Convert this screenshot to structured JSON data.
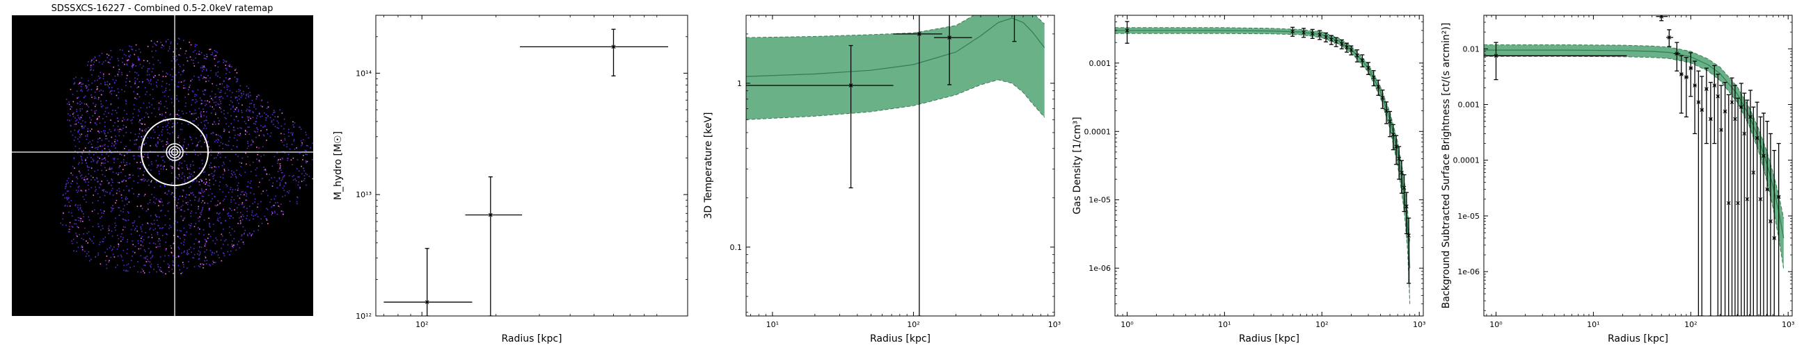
{
  "image_panel": {
    "title": "SDSSXCS-16227 - Combined 0.5-2.0keV ratemap"
  },
  "chart_data": [
    {
      "type": "scatter",
      "name": "mass",
      "xlabel": "Radius [kpc]",
      "ylabel": "M_hydro [M☉]",
      "xscale": "log",
      "yscale": "log",
      "xlim": [
        65,
        1200
      ],
      "ylim": [
        1000000000000.0,
        300000000000000.0
      ],
      "xticks": [
        {
          "v": 100,
          "label": "10²"
        }
      ],
      "yticks": [
        {
          "v": 1000000000000.0,
          "label": "10¹²"
        },
        {
          "v": 10000000000000.0,
          "label": "10¹³"
        },
        {
          "v": 100000000000000.0,
          "label": "10¹⁴"
        }
      ],
      "points": [
        {
          "x": 105,
          "y": 1300000000000.0,
          "xlo": 70,
          "xhi": 160,
          "ylo": 1000000000000.0,
          "yhi": 3600000000000.0
        },
        {
          "x": 190,
          "y": 6800000000000.0,
          "xlo": 150,
          "xhi": 255,
          "ylo": 1000000000000.0,
          "yhi": 14000000000000.0
        },
        {
          "x": 600,
          "y": 165000000000000.0,
          "xlo": 250,
          "xhi": 1000,
          "ylo": 95000000000000.0,
          "yhi": 230000000000000.0
        }
      ]
    },
    {
      "type": "line",
      "name": "temperature",
      "xlabel": "Radius [kpc]",
      "ylabel": "3D Temperature [keV]",
      "xscale": "log",
      "yscale": "log",
      "xlim": [
        6.5,
        1000
      ],
      "ylim": [
        0.038,
        2.6
      ],
      "xticks": [
        {
          "v": 10,
          "label": "10¹"
        },
        {
          "v": 100,
          "label": "10²"
        },
        {
          "v": 1000,
          "label": "10³"
        }
      ],
      "yticks": [
        {
          "v": 0.1,
          "label": "0.1"
        },
        {
          "v": 1,
          "label": "1"
        }
      ],
      "band": {
        "x": [
          6.5,
          20,
          50,
          100,
          200,
          300,
          400,
          500,
          600,
          700,
          850
        ],
        "lo": [
          0.6,
          0.63,
          0.67,
          0.73,
          0.85,
          0.98,
          1.05,
          1.0,
          0.88,
          0.75,
          0.62
        ],
        "mid": [
          1.1,
          1.14,
          1.2,
          1.3,
          1.55,
          1.95,
          2.35,
          2.5,
          2.35,
          2.05,
          1.65
        ],
        "hi": [
          1.9,
          1.93,
          1.98,
          2.03,
          2.25,
          2.75,
          3.1,
          3.25,
          3.0,
          2.7,
          2.3
        ]
      },
      "points": [
        {
          "x": 36,
          "y": 0.97,
          "xlo": 6.5,
          "xhi": 72,
          "ylo": 0.23,
          "yhi": 1.7
        },
        {
          "x": 110,
          "y": 2.0,
          "xlo": 72,
          "xhi": 160,
          "ylo": 0.017,
          "yhi": 4.4
        },
        {
          "x": 180,
          "y": 1.9,
          "xlo": 140,
          "xhi": 260,
          "ylo": 0.98,
          "yhi": 2.8
        },
        {
          "x": 520,
          "y": 3.8,
          "xlo": 270,
          "xhi": 820,
          "ylo": 1.8,
          "yhi": 5.5
        }
      ]
    },
    {
      "type": "line",
      "name": "density",
      "xlabel": "Radius [kpc]",
      "ylabel": "Gas Density [1/cm³]",
      "xscale": "log",
      "yscale": "log",
      "xlim": [
        0.75,
        1100
      ],
      "ylim": [
        2e-07,
        0.005
      ],
      "xticks": [
        {
          "v": 1,
          "label": "10⁰"
        },
        {
          "v": 10,
          "label": "10¹"
        },
        {
          "v": 100,
          "label": "10²"
        },
        {
          "v": 1000,
          "label": "10³"
        }
      ],
      "yticks": [
        {
          "v": 1e-06,
          "label": "1e-06"
        },
        {
          "v": 1e-05,
          "label": "1e-05"
        },
        {
          "v": 0.0001,
          "label": "0.0001"
        },
        {
          "v": 0.001,
          "label": "0.001"
        }
      ],
      "model": {
        "x": [
          0.75,
          2,
          5,
          10,
          30,
          60,
          100,
          150,
          200,
          300,
          400,
          500,
          600,
          700,
          760,
          800
        ],
        "mid": [
          0.003,
          0.003,
          0.003,
          0.00299,
          0.00295,
          0.00285,
          0.0026,
          0.0021,
          0.0016,
          0.00085,
          0.00038,
          0.00015,
          5e-05,
          1.3e-05,
          4e-06,
          1e-06
        ],
        "lo": [
          0.0027,
          0.0027,
          0.0027,
          0.0027,
          0.00268,
          0.0026,
          0.00235,
          0.0019,
          0.00142,
          0.00074,
          0.00031,
          0.00011,
          3.2e-05,
          7e-06,
          1.8e-06,
          3e-07
        ],
        "hi": [
          0.0033,
          0.0033,
          0.0033,
          0.0033,
          0.00322,
          0.0031,
          0.00285,
          0.0023,
          0.00178,
          0.00096,
          0.00045,
          0.00019,
          7e-05,
          2e-05,
          7e-06,
          2.4e-06
        ]
      },
      "points": [
        {
          "x": 1,
          "y": 0.003,
          "yerr_frac": 0.35
        },
        {
          "x": 50,
          "y": 0.0029,
          "yerr_frac": 0.15
        },
        {
          "x": 65,
          "y": 0.0028,
          "yerr_frac": 0.15
        },
        {
          "x": 80,
          "y": 0.0027,
          "yerr_frac": 0.15
        },
        {
          "x": 95,
          "y": 0.0026,
          "yerr_frac": 0.15
        },
        {
          "x": 110,
          "y": 0.0024,
          "yerr_frac": 0.15
        },
        {
          "x": 125,
          "y": 0.0022,
          "yerr_frac": 0.15
        },
        {
          "x": 140,
          "y": 0.00205,
          "yerr_frac": 0.15
        },
        {
          "x": 160,
          "y": 0.0019,
          "yerr_frac": 0.15
        },
        {
          "x": 180,
          "y": 0.0017,
          "yerr_frac": 0.15
        },
        {
          "x": 200,
          "y": 0.00155,
          "yerr_frac": 0.15
        },
        {
          "x": 230,
          "y": 0.0013,
          "yerr_frac": 0.2
        },
        {
          "x": 260,
          "y": 0.0011,
          "yerr_frac": 0.2
        },
        {
          "x": 300,
          "y": 0.00085,
          "yerr_frac": 0.2
        },
        {
          "x": 340,
          "y": 0.00062,
          "yerr_frac": 0.25
        },
        {
          "x": 380,
          "y": 0.00045,
          "yerr_frac": 0.25
        },
        {
          "x": 420,
          "y": 0.00031,
          "yerr_frac": 0.3
        },
        {
          "x": 460,
          "y": 0.0002,
          "yerr_frac": 0.35
        },
        {
          "x": 500,
          "y": 0.00014,
          "yerr_frac": 0.4
        },
        {
          "x": 540,
          "y": 9e-05,
          "yerr_frac": 0.4
        },
        {
          "x": 580,
          "y": 6e-05,
          "yerr_frac": 0.45
        },
        {
          "x": 620,
          "y": 4e-05,
          "yerr_frac": 0.5
        },
        {
          "x": 660,
          "y": 2.5e-05,
          "yerr_frac": 0.5
        },
        {
          "x": 700,
          "y": 1.5e-05,
          "yerr_frac": 0.55
        },
        {
          "x": 740,
          "y": 8e-06,
          "yerr_frac": 0.6
        },
        {
          "x": 780,
          "y": 3e-06,
          "yerr_frac": 0.8
        }
      ]
    },
    {
      "type": "line",
      "name": "surface-brightness",
      "xlabel": "Radius [kpc]",
      "ylabel": "Background Subtracted Surface Brightness [ct/(s arcmin²)]",
      "xscale": "log",
      "yscale": "log",
      "xlim": [
        0.75,
        1100
      ],
      "ylim": [
        1.6e-07,
        0.04
      ],
      "xticks": [
        {
          "v": 1,
          "label": "10⁰"
        },
        {
          "v": 10,
          "label": "10¹"
        },
        {
          "v": 100,
          "label": "10²"
        },
        {
          "v": 1000,
          "label": "10³"
        }
      ],
      "yticks": [
        {
          "v": 1e-06,
          "label": "1e-06"
        },
        {
          "v": 1e-05,
          "label": "1e-05"
        },
        {
          "v": 0.0001,
          "label": "0.0001"
        },
        {
          "v": 0.001,
          "label": "0.001"
        },
        {
          "v": 0.01,
          "label": "0.01"
        }
      ],
      "model": {
        "x": [
          0.75,
          5,
          20,
          40,
          60,
          100,
          150,
          200,
          300,
          400,
          500,
          600,
          700,
          800,
          900
        ],
        "mid": [
          0.0095,
          0.0095,
          0.0093,
          0.009,
          0.0086,
          0.0072,
          0.0052,
          0.0036,
          0.00155,
          0.00062,
          0.00024,
          9e-05,
          3.4e-05,
          1.2e-05,
          4e-06
        ],
        "lo": [
          0.0073,
          0.0073,
          0.0072,
          0.007,
          0.0067,
          0.0056,
          0.004,
          0.0027,
          0.0011,
          0.00041,
          0.00014,
          4.5e-05,
          1.4e-05,
          4e-06,
          1.1e-06
        ],
        "hi": [
          0.0118,
          0.0118,
          0.0116,
          0.0112,
          0.0107,
          0.009,
          0.0066,
          0.0047,
          0.0021,
          0.00088,
          0.00036,
          0.00015,
          6e-05,
          2.4e-05,
          9e-06
        ]
      },
      "points": [
        {
          "x": 1.0,
          "y": 0.0075,
          "xlo": 0.75,
          "xhi": 22,
          "ylo": 0.0028,
          "yhi": 0.013
        },
        {
          "x": 50,
          "y": 0.038,
          "xlo": 44,
          "xhi": 58,
          "ylo": 0.032,
          "yhi": 0.045
        },
        {
          "x": 60,
          "y": 0.016,
          "xlo": 56,
          "xhi": 66,
          "ylo": 0.011,
          "yhi": 0.022
        },
        {
          "x": 72,
          "y": 0.0082,
          "xlo": 67,
          "xhi": 78,
          "ylo": 0.004,
          "yhi": 0.013
        },
        {
          "x": 80,
          "y": 0.0035,
          "xlo": 77,
          "xhi": 84,
          "ylo": 0.0007,
          "yhi": 0.0075
        },
        {
          "x": 90,
          "y": 0.0031,
          "xlo": 86,
          "xhi": 95,
          "ylo": 0.0006,
          "yhi": 0.007
        },
        {
          "x": 100,
          "y": 0.0045,
          "xlo": 96,
          "xhi": 105,
          "ylo": 0.0014,
          "yhi": 0.0085
        },
        {
          "x": 110,
          "y": 0.0022,
          "xlo": 106,
          "xhi": 115,
          "ylo": 0.0003,
          "yhi": 0.006
        },
        {
          "x": 120,
          "y": 0.0011,
          "xlo": 116,
          "xhi": 125,
          "ylo": 1.6e-07,
          "yhi": 0.004
        },
        {
          "x": 130,
          "y": 0.0008,
          "xlo": 126,
          "xhi": 135,
          "ylo": 1.6e-07,
          "yhi": 0.0032
        },
        {
          "x": 145,
          "y": 0.0019,
          "xlo": 140,
          "xhi": 150,
          "ylo": 0.0002,
          "yhi": 0.0045
        },
        {
          "x": 160,
          "y": 0.00055,
          "xlo": 155,
          "xhi": 166,
          "ylo": 1.6e-07,
          "yhi": 0.0025
        },
        {
          "x": 175,
          "y": 0.0022,
          "xlo": 170,
          "xhi": 182,
          "ylo": 0.0002,
          "yhi": 0.005
        },
        {
          "x": 190,
          "y": 0.0014,
          "xlo": 185,
          "xhi": 196,
          "ylo": 1.6e-07,
          "yhi": 0.0035
        },
        {
          "x": 205,
          "y": 0.00035,
          "xlo": 200,
          "xhi": 212,
          "ylo": 1.6e-07,
          "yhi": 0.0022
        },
        {
          "x": 225,
          "y": 0.00075,
          "xlo": 218,
          "xhi": 232,
          "ylo": 1.6e-07,
          "yhi": 0.0025
        },
        {
          "x": 245,
          "y": 1.7e-05,
          "xlo": 238,
          "xhi": 252,
          "ylo": 1.6e-07,
          "yhi": 0.0015
        },
        {
          "x": 265,
          "y": 0.0011,
          "xlo": 258,
          "xhi": 272,
          "ylo": 1.6e-07,
          "yhi": 0.003
        },
        {
          "x": 285,
          "y": 0.00055,
          "xlo": 278,
          "xhi": 292,
          "ylo": 1.6e-07,
          "yhi": 0.0022
        },
        {
          "x": 305,
          "y": 1.7e-05,
          "xlo": 298,
          "xhi": 312,
          "ylo": 1.6e-07,
          "yhi": 0.0013
        },
        {
          "x": 330,
          "y": 0.0009,
          "xlo": 320,
          "xhi": 340,
          "ylo": 1.6e-07,
          "yhi": 0.0024
        },
        {
          "x": 355,
          "y": 0.0003,
          "xlo": 345,
          "xhi": 365,
          "ylo": 1.6e-07,
          "yhi": 0.0016
        },
        {
          "x": 380,
          "y": 2e-05,
          "xlo": 370,
          "xhi": 390,
          "ylo": 1.6e-07,
          "yhi": 0.0012
        },
        {
          "x": 410,
          "y": 0.0006,
          "xlo": 400,
          "xhi": 420,
          "ylo": 1.6e-07,
          "yhi": 0.0018
        },
        {
          "x": 440,
          "y": 6e-05,
          "xlo": 430,
          "xhi": 450,
          "ylo": 1.6e-07,
          "yhi": 0.0009
        },
        {
          "x": 480,
          "y": 0.00025,
          "xlo": 465,
          "xhi": 495,
          "ylo": 1.6e-07,
          "yhi": 0.0011
        },
        {
          "x": 520,
          "y": 2e-05,
          "xlo": 505,
          "xhi": 535,
          "ylo": 1.6e-07,
          "yhi": 0.0006
        },
        {
          "x": 560,
          "y": 0.00012,
          "xlo": 545,
          "xhi": 575,
          "ylo": 1.6e-07,
          "yhi": 0.0007
        },
        {
          "x": 610,
          "y": 3e-05,
          "xlo": 590,
          "xhi": 630,
          "ylo": 1.6e-07,
          "yhi": 0.0005
        },
        {
          "x": 660,
          "y": 8e-06,
          "xlo": 640,
          "xhi": 680,
          "ylo": 1.6e-07,
          "yhi": 0.0003
        },
        {
          "x": 720,
          "y": 4e-06,
          "xlo": 695,
          "xhi": 745,
          "ylo": 1.6e-07,
          "yhi": 0.00015
        },
        {
          "x": 800,
          "y": 2.2e-05,
          "xlo": 770,
          "xhi": 830,
          "ylo": 1.6e-07,
          "yhi": 0.0002
        }
      ]
    }
  ],
  "colors": {
    "band": "#5aa97a",
    "band_edge": "#3d7a55",
    "model_line": "#2e7d55",
    "points": "#000000",
    "image_bg": "#000000",
    "image_counts": "#5b2bd6",
    "image_bright": "#ff7ad9",
    "crosshair": "#d9d9d9"
  }
}
